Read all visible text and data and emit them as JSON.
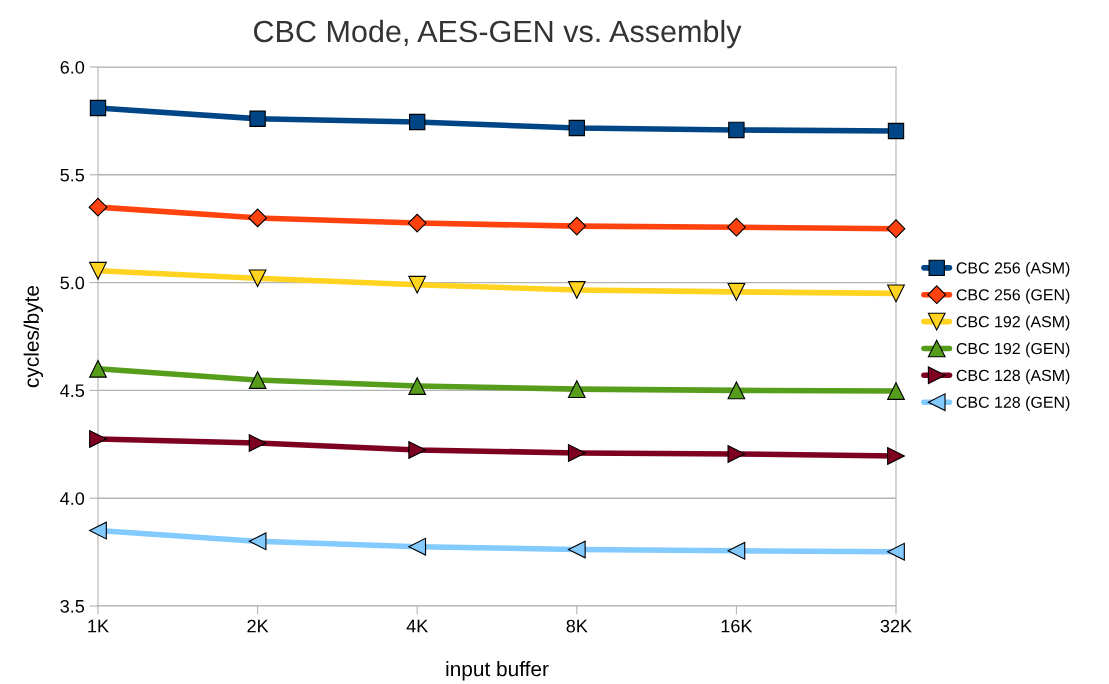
{
  "chart_data": {
    "type": "line",
    "title": "CBC Mode, AES-GEN vs. Assembly",
    "xlabel": "input buffer",
    "ylabel": "cycles/byte",
    "categories": [
      "1K",
      "2K",
      "4K",
      "8K",
      "16K",
      "32K"
    ],
    "series": [
      {
        "name": "CBC 256 (ASM)",
        "color": "#004586",
        "marker": "square",
        "values": [
          5.81,
          5.76,
          5.745,
          5.717,
          5.708,
          5.703
        ]
      },
      {
        "name": "CBC 256 (GEN)",
        "color": "#ff420e",
        "marker": "diamond",
        "values": [
          5.35,
          5.3,
          5.276,
          5.262,
          5.257,
          5.25
        ]
      },
      {
        "name": "CBC 192 (ASM)",
        "color": "#ffd320",
        "marker": "triangle_down",
        "values": [
          5.055,
          5.02,
          4.99,
          4.966,
          4.957,
          4.95
        ]
      },
      {
        "name": "CBC 192 (GEN)",
        "color": "#579d1c",
        "marker": "triangle",
        "values": [
          4.6,
          4.548,
          4.52,
          4.506,
          4.5,
          4.497
        ]
      },
      {
        "name": "CBC 128 (ASM)",
        "color": "#7e0021",
        "marker": "triangle_right",
        "values": [
          4.275,
          4.256,
          4.224,
          4.21,
          4.205,
          4.196
        ]
      },
      {
        "name": "CBC 128 (GEN)",
        "color": "#83caff",
        "marker": "triangle_left",
        "values": [
          3.85,
          3.8,
          3.775,
          3.762,
          3.756,
          3.752
        ]
      }
    ],
    "ylim": [
      3.5,
      6.0
    ],
    "yticks": [
      {
        "value": 3.5,
        "label": "3.5"
      },
      {
        "value": 4.0,
        "label": "4.0"
      },
      {
        "value": 4.5,
        "label": "4.5"
      },
      {
        "value": 5.0,
        "label": "5.0"
      },
      {
        "value": 5.5,
        "label": "5.5"
      },
      {
        "value": 6.0,
        "label": "6.0"
      }
    ],
    "grid": "y",
    "legend": "right",
    "line_style": "solid"
  }
}
